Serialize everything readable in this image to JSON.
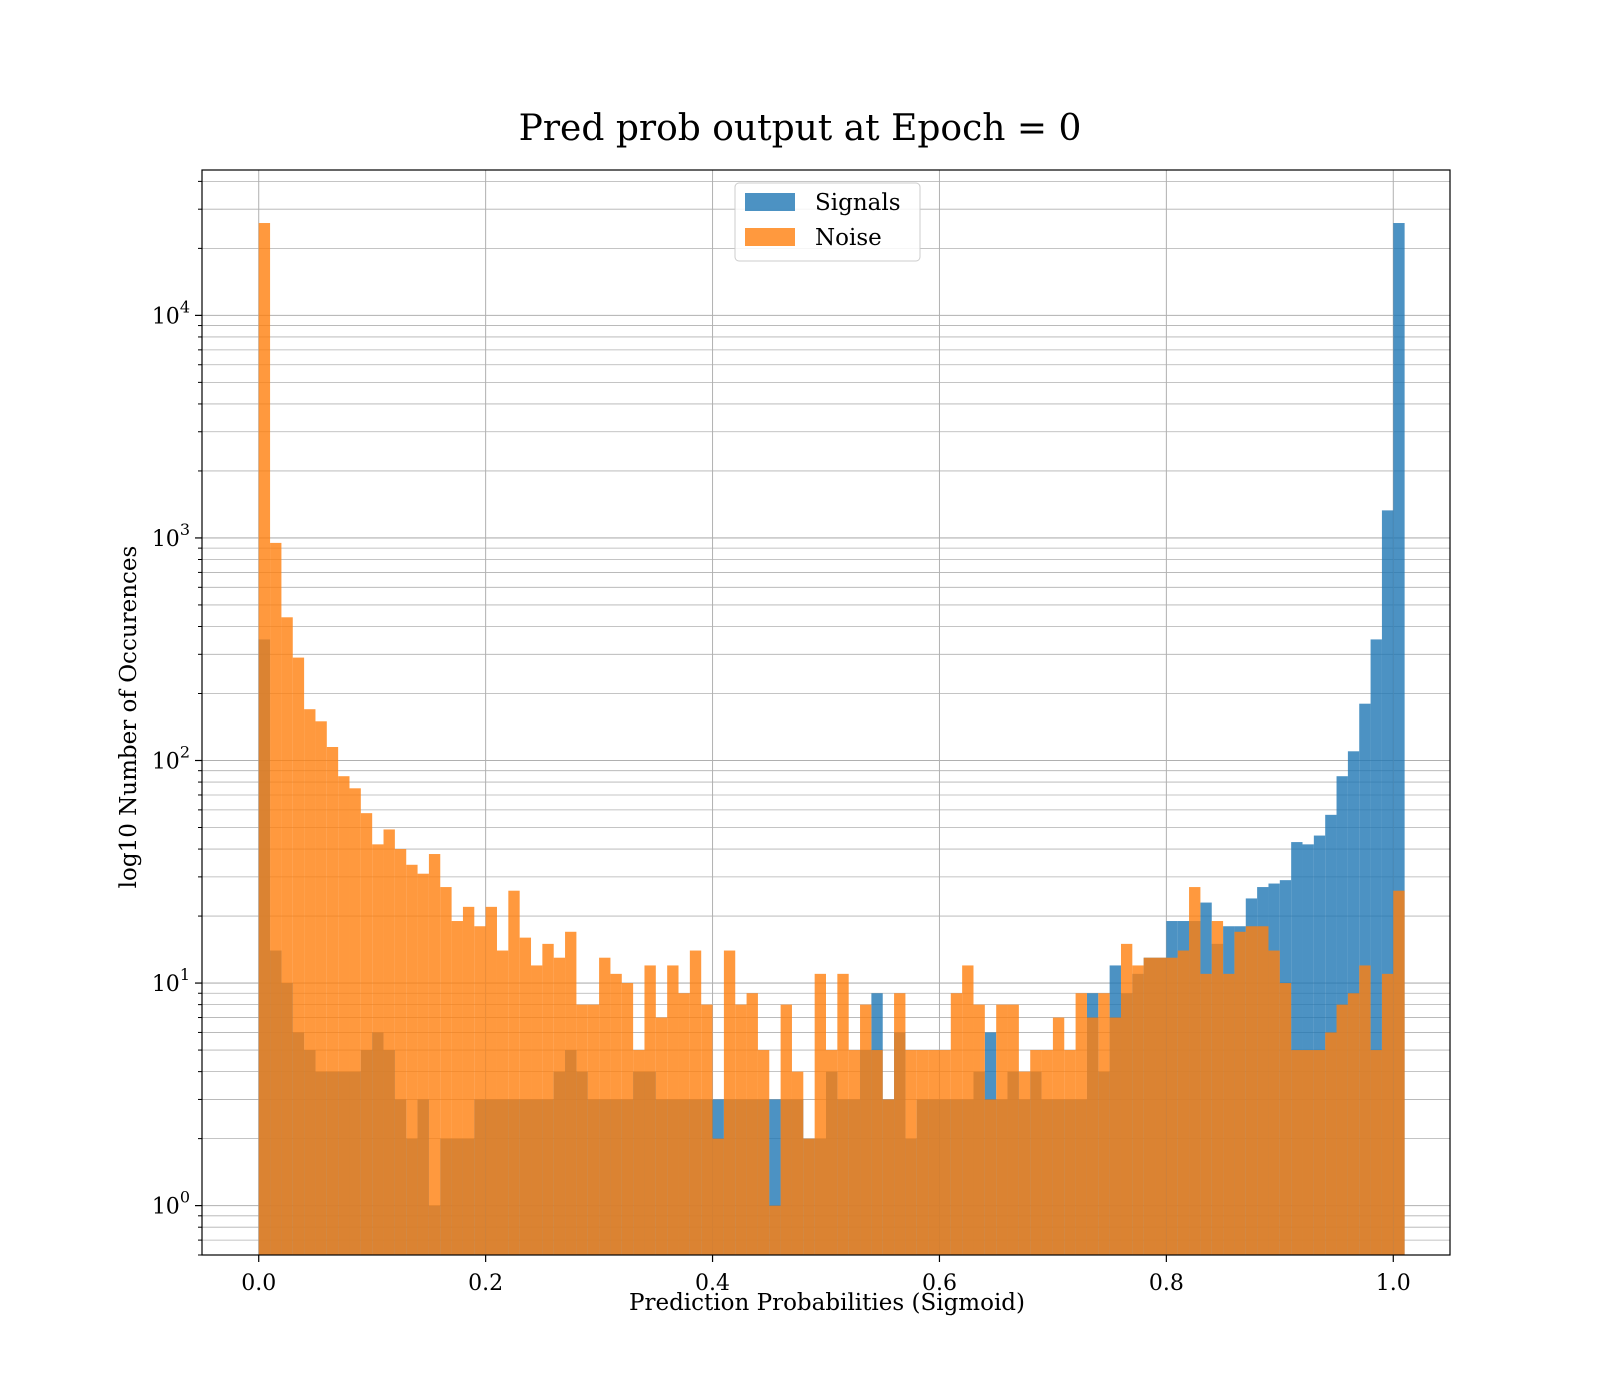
{
  "chart_data": {
    "type": "bar",
    "subtype": "overlapping-histogram",
    "title": "Pred prob output at Epoch = 0",
    "xlabel": "Prediction Probabilities (Sigmoid)",
    "ylabel": "log10 Number of Occurences",
    "xlim": [
      -0.05,
      1.05
    ],
    "ylim": [
      0.6,
      45000
    ],
    "yscale": "log",
    "grid": true,
    "legend_position": "top-center",
    "bin_start": 0.0,
    "bin_width": 0.01,
    "x_ticks": [
      "0.0",
      "0.2",
      "0.4",
      "0.6",
      "0.8",
      "1.0"
    ],
    "x_tick_values": [
      0.0,
      0.2,
      0.4,
      0.6,
      0.8,
      1.0
    ],
    "y_ticks": [
      {
        "value": 1,
        "base": "10",
        "exp": "0"
      },
      {
        "value": 10,
        "base": "10",
        "exp": "1"
      },
      {
        "value": 100,
        "base": "10",
        "exp": "2"
      },
      {
        "value": 1000,
        "base": "10",
        "exp": "3"
      },
      {
        "value": 10000,
        "base": "10",
        "exp": "4"
      }
    ],
    "series": [
      {
        "name": "Signals",
        "color": "#1f77b4",
        "values": [
          350,
          14,
          10,
          6,
          5,
          4,
          4,
          4,
          4,
          5,
          6,
          5,
          3,
          2,
          3,
          1,
          2,
          2,
          2,
          3,
          3,
          3,
          3,
          3,
          3,
          3,
          4,
          5,
          4,
          3,
          3,
          3,
          3,
          4,
          4,
          3,
          3,
          3,
          3,
          3,
          3,
          3,
          3,
          3,
          3,
          3,
          3,
          3,
          2,
          2,
          4,
          3,
          3,
          5,
          9,
          3,
          6,
          2,
          3,
          3,
          3,
          3,
          3,
          4,
          6,
          3,
          4,
          3,
          4,
          3,
          3,
          3,
          3,
          9,
          4,
          12,
          9,
          11,
          13,
          13,
          19,
          19,
          19,
          23,
          15,
          18,
          18,
          24,
          27,
          28,
          29,
          43,
          42,
          46,
          57,
          85,
          110,
          180,
          350,
          1330,
          26000
        ]
      },
      {
        "name": "Noise",
        "color": "#ff7f0e",
        "values": [
          26000,
          950,
          440,
          290,
          170,
          150,
          115,
          85,
          75,
          58,
          42,
          49,
          40,
          34,
          31,
          38,
          27,
          19,
          22,
          18,
          22,
          14,
          26,
          16,
          12,
          15,
          13,
          17,
          8,
          8,
          13,
          11,
          10,
          5,
          12,
          7,
          12,
          9,
          14,
          8,
          2,
          14,
          8,
          9,
          5,
          1,
          8,
          4,
          2,
          11,
          5,
          11,
          5,
          8,
          5,
          3,
          9,
          5,
          5,
          5,
          5,
          9,
          12,
          8,
          3,
          8,
          8,
          4,
          5,
          5,
          7,
          5,
          9,
          7,
          9,
          7,
          15,
          12,
          13,
          13,
          13,
          14,
          27,
          11,
          19,
          11,
          17,
          18,
          18,
          14,
          10,
          5,
          5,
          5,
          6,
          8,
          9,
          12,
          5,
          11,
          26
        ]
      }
    ]
  }
}
